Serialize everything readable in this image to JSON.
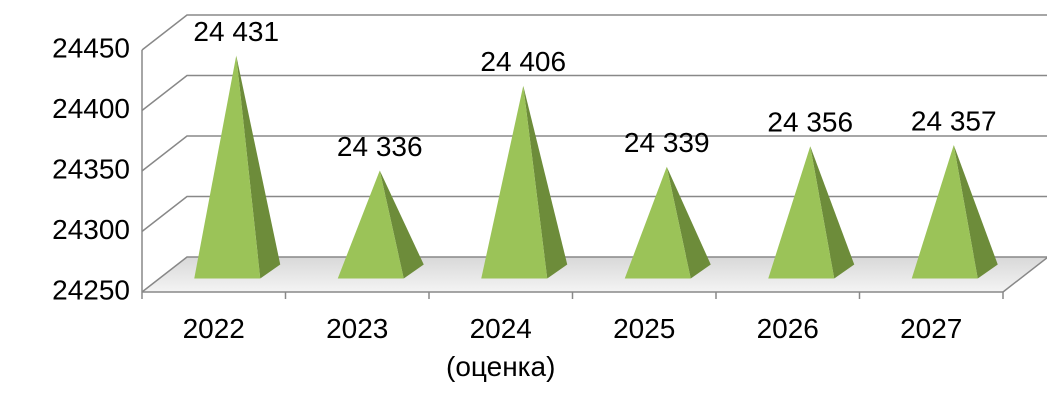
{
  "chart_data": {
    "type": "pyramid",
    "categories": [
      "2022",
      "2023",
      "2024 (оценка)",
      "2025",
      "2026",
      "2027"
    ],
    "values": [
      24431,
      24336,
      24406,
      24339,
      24356,
      24357
    ],
    "value_labels": [
      "24 431",
      "24 336",
      "24 406",
      "24 339",
      "24 356",
      "24 357"
    ],
    "color": "#9bc358",
    "ylim": [
      24250,
      24450
    ],
    "yticks": [
      24250,
      24300,
      24350,
      24400,
      24450
    ],
    "grid": true
  }
}
